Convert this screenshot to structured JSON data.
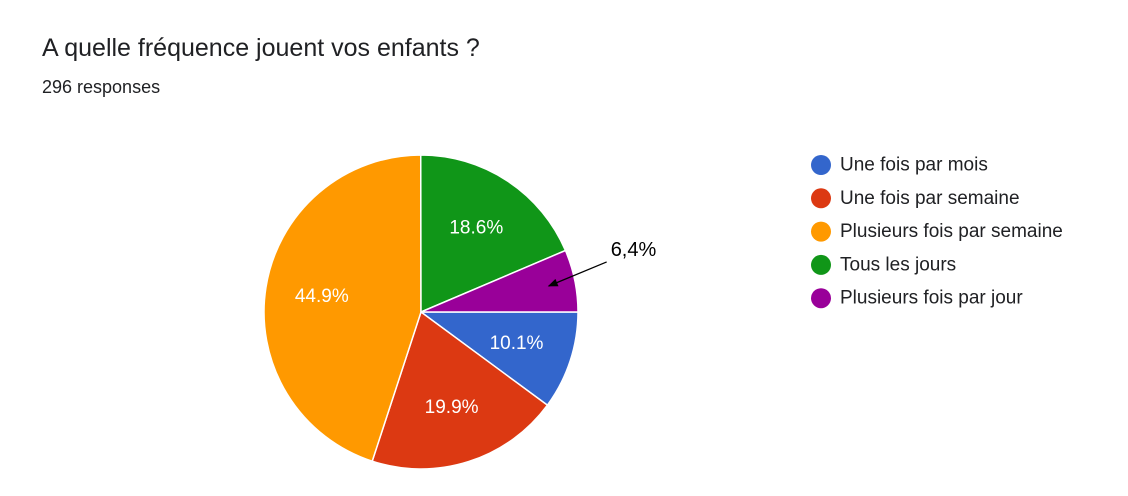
{
  "title": "A quelle fréquence jouent vos enfants ?",
  "subtitle": "296 responses",
  "chart_data": {
    "type": "pie",
    "title": "A quelle fréquence jouent vos enfants ?",
    "legend_position": "right",
    "slices": [
      {
        "label": "Une fois par mois",
        "value": 10.1,
        "display": "10.1%",
        "color": "#3366cc"
      },
      {
        "label": "Une fois par semaine",
        "value": 19.9,
        "display": "19.9%",
        "color": "#dc3912"
      },
      {
        "label": "Plusieurs fois par semaine",
        "value": 44.9,
        "display": "44.9%",
        "color": "#ff9900"
      },
      {
        "label": "Tous les jours",
        "value": 18.6,
        "display": "18.6%",
        "color": "#109618"
      },
      {
        "label": "Plusieurs fois par jour",
        "value": 6.4,
        "display": "",
        "color": "#990099"
      }
    ],
    "annotation": {
      "text": "6,4%",
      "slice": "Plusieurs fois par jour"
    }
  }
}
